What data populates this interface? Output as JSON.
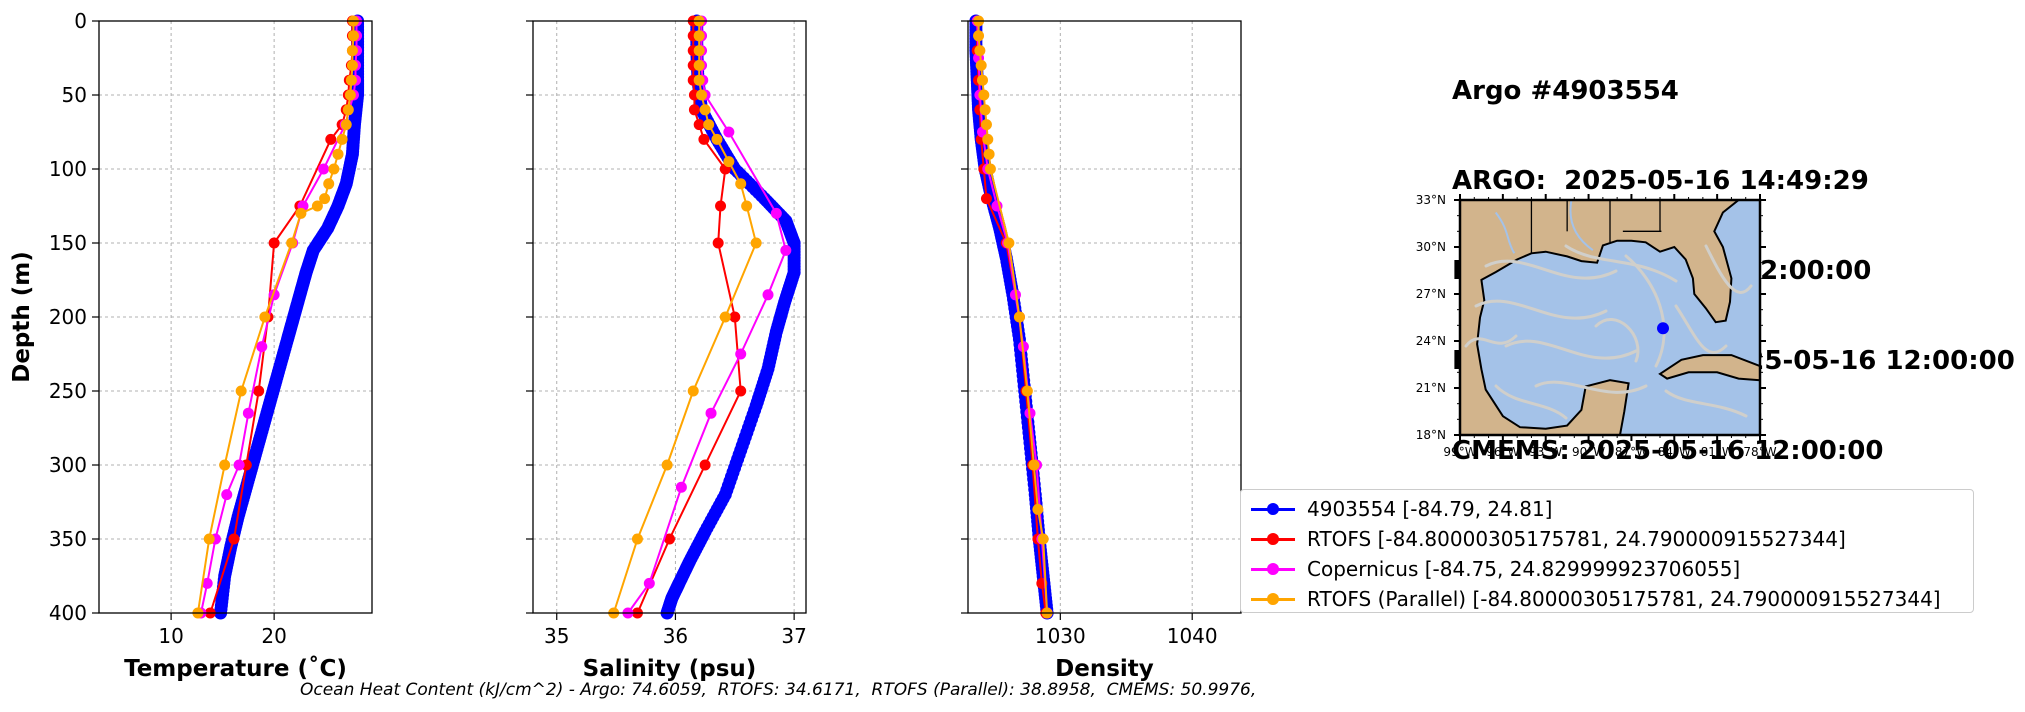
{
  "colors": {
    "argo": "#0000ff",
    "rtofs": "#ff0000",
    "copernicus": "#ff00ff",
    "rtofs_parallel": "#ffa500",
    "land": "#d2b48c",
    "ocean": "#a4c2e8",
    "current": "#d0cfcb"
  },
  "info": {
    "lines": [
      "Argo #4903554",
      "ARGO:  2025-05-16 14:49:29",
      "RTOFS: 2025-05-16 12:00:00",
      "RTOFS (Parallel): 2025-05-16 12:00:00",
      "CMEMS: 2025-05-16 12:00:00"
    ]
  },
  "footnote": "Ocean Heat Content (kJ/cm^2) - Argo: 74.6059,  RTOFS: 34.6171,  RTOFS (Parallel): 38.8958,  CMEMS: 50.9976,",
  "legend": [
    {
      "label": "4903554 [-84.79, 24.81]",
      "color": "#0000ff"
    },
    {
      "label": "RTOFS [-84.80000305175781, 24.790000915527344]",
      "color": "#ff0000"
    },
    {
      "label": "Copernicus [-84.75, 24.829999923706055]",
      "color": "#ff00ff"
    },
    {
      "label": "RTOFS (Parallel) [-84.80000305175781, 24.790000915527344]",
      "color": "#ffa500"
    }
  ],
  "map": {
    "lat_labels": [
      "33°N",
      "30°N",
      "27°N",
      "24°N",
      "21°N",
      "18°N"
    ],
    "lat_values": [
      33,
      30,
      27,
      24,
      21,
      18
    ],
    "lon_labels": [
      "99°W",
      "96°W",
      "93°W",
      "90°W",
      "87°W",
      "84°W",
      "81°W",
      "78°W"
    ],
    "lon_values": [
      -99,
      -96,
      -93,
      -90,
      -87,
      -84,
      -81,
      -78
    ],
    "lon_range": [
      -99,
      -78
    ],
    "lat_range": [
      18,
      33
    ],
    "float_position": [
      -84.79,
      24.81
    ]
  },
  "chart_data": [
    {
      "type": "line",
      "xlabel": "Temperature (˚C)",
      "ylabel": "Depth (m)",
      "xlim": [
        3,
        29.5
      ],
      "ylim": [
        400,
        0
      ],
      "xticks": [
        10,
        20
      ],
      "xtick_labels": [
        "10",
        "20"
      ],
      "yticks": [
        0,
        50,
        100,
        150,
        200,
        250,
        300,
        350,
        400
      ],
      "ytick_labels": [
        "0",
        "50",
        "100",
        "150",
        "200",
        "250",
        "300",
        "350",
        "400"
      ],
      "grid": true,
      "series": [
        {
          "name": "4903554 [-84.79, 24.81]",
          "color": "#0000ff",
          "dense": true,
          "x": [
            28.1,
            28.1,
            28.1,
            28.1,
            27.8,
            27.6,
            27.0,
            26.2,
            25.2,
            23.8,
            23.1,
            22.5,
            21.9,
            21.3,
            20.5,
            19.7,
            18.9,
            18.1,
            17.3,
            16.5,
            15.8,
            15.2,
            14.8
          ],
          "y": [
            0,
            20,
            40,
            50,
            70,
            90,
            110,
            125,
            140,
            155,
            170,
            185,
            200,
            215,
            235,
            255,
            275,
            295,
            315,
            335,
            355,
            375,
            400
          ]
        },
        {
          "name": "RTOFS [-84.80000305175781, 24.790000915527344]",
          "color": "#ff0000",
          "x": [
            27.6,
            27.6,
            27.6,
            27.5,
            27.3,
            27.2,
            27.0,
            26.6,
            25.5,
            22.5,
            20.0,
            19.4,
            18.5,
            17.3,
            16.1,
            13.8
          ],
          "y": [
            0,
            10,
            20,
            30,
            40,
            50,
            60,
            70,
            80,
            125,
            150,
            200,
            250,
            300,
            350,
            400
          ]
        },
        {
          "name": "Copernicus [-84.75, 24.829999923706055]",
          "color": "#ff00ff",
          "x": [
            28.0,
            28.0,
            28.0,
            27.9,
            27.9,
            27.7,
            26.9,
            24.8,
            22.8,
            21.8,
            20.0,
            18.8,
            17.5,
            16.6,
            15.4,
            14.3,
            13.5,
            12.9
          ],
          "y": [
            0,
            10,
            20,
            30,
            40,
            50,
            70,
            100,
            125,
            150,
            185,
            220,
            265,
            300,
            320,
            350,
            380,
            400
          ]
        },
        {
          "name": "RTOFS (Parallel) [-84.80000305175781, 24.790000915527344]",
          "color": "#ffa500",
          "x": [
            27.7,
            27.7,
            27.6,
            27.6,
            27.5,
            27.4,
            27.2,
            27.0,
            26.6,
            26.2,
            25.8,
            25.3,
            24.9,
            24.2,
            22.6,
            21.7,
            19.1,
            16.8,
            15.2,
            13.7,
            12.6
          ],
          "y": [
            0,
            10,
            20,
            30,
            40,
            50,
            60,
            70,
            80,
            90,
            100,
            110,
            120,
            125,
            130,
            150,
            200,
            250,
            300,
            350,
            400
          ]
        }
      ]
    },
    {
      "type": "line",
      "xlabel": "Salinity (psu)",
      "xlim": [
        34.8,
        37.1
      ],
      "ylim": [
        400,
        0
      ],
      "xticks": [
        35,
        36,
        37
      ],
      "xtick_labels": [
        "35",
        "36",
        "37"
      ],
      "yticks": [
        0,
        50,
        100,
        150,
        200,
        250,
        300,
        350,
        400
      ],
      "grid": true,
      "series": [
        {
          "name": "4903554 [-84.79, 24.81]",
          "color": "#0000ff",
          "dense": true,
          "x": [
            36.18,
            36.18,
            36.19,
            36.22,
            36.35,
            36.5,
            36.75,
            36.93,
            37.0,
            37.0,
            36.92,
            36.85,
            36.78,
            36.68,
            36.55,
            36.42,
            36.25,
            36.12,
            36.03,
            35.97,
            35.93
          ],
          "y": [
            0,
            20,
            40,
            60,
            80,
            100,
            120,
            135,
            150,
            170,
            190,
            210,
            235,
            260,
            290,
            320,
            345,
            365,
            380,
            390,
            400
          ]
        },
        {
          "name": "RTOFS [-84.80000305175781, 24.790000915527344]",
          "color": "#ff0000",
          "x": [
            36.15,
            36.15,
            36.15,
            36.15,
            36.15,
            36.16,
            36.16,
            36.2,
            36.24,
            36.42,
            36.38,
            36.36,
            36.5,
            36.55,
            36.25,
            35.95,
            35.68
          ],
          "y": [
            0,
            10,
            20,
            30,
            40,
            50,
            60,
            70,
            80,
            100,
            125,
            150,
            200,
            250,
            300,
            350,
            400
          ]
        },
        {
          "name": "Copernicus [-84.75, 24.829999923706055]",
          "color": "#ff00ff",
          "x": [
            36.22,
            36.22,
            36.22,
            36.22,
            36.23,
            36.25,
            36.45,
            36.85,
            36.93,
            36.78,
            36.55,
            36.3,
            36.05,
            35.78,
            35.6
          ],
          "y": [
            0,
            10,
            20,
            30,
            40,
            50,
            75,
            130,
            155,
            185,
            225,
            265,
            315,
            380,
            400
          ]
        },
        {
          "name": "RTOFS (Parallel) [-84.80000305175781, 24.790000915527344]",
          "color": "#ffa500",
          "x": [
            36.2,
            36.2,
            36.2,
            36.2,
            36.2,
            36.22,
            36.25,
            36.28,
            36.35,
            36.45,
            36.55,
            36.6,
            36.68,
            36.42,
            36.15,
            35.93,
            35.68,
            35.48
          ],
          "y": [
            0,
            10,
            20,
            30,
            40,
            50,
            60,
            70,
            80,
            95,
            110,
            125,
            150,
            200,
            250,
            300,
            350,
            400
          ]
        }
      ]
    },
    {
      "type": "line",
      "xlabel": "Density",
      "xlim": [
        1023.0,
        1043.7
      ],
      "ylim": [
        400,
        0
      ],
      "xticks": [
        1030,
        1040
      ],
      "xtick_labels": [
        "1030",
        "1040"
      ],
      "yticks": [
        0,
        50,
        100,
        150,
        200,
        250,
        300,
        350,
        400
      ],
      "grid": true,
      "series": [
        {
          "name": "4903554 [-84.79, 24.81]",
          "color": "#0000ff",
          "dense": true,
          "x": [
            1023.6,
            1023.6,
            1023.7,
            1023.8,
            1024.0,
            1024.3,
            1024.8,
            1025.4,
            1025.9,
            1026.4,
            1026.9,
            1027.3,
            1027.7,
            1028.1,
            1028.4,
            1028.7,
            1029.0
          ],
          "y": [
            0,
            20,
            40,
            60,
            80,
            100,
            120,
            140,
            160,
            185,
            215,
            250,
            285,
            320,
            350,
            375,
            400
          ]
        },
        {
          "name": "RTOFS [-84.80000305175781, 24.790000915527344]",
          "color": "#ff0000",
          "x": [
            1023.7,
            1023.7,
            1023.8,
            1023.9,
            1024.0,
            1024.2,
            1024.4,
            1025.9,
            1026.9,
            1027.4,
            1027.9,
            1028.3,
            1028.6,
            1028.9
          ],
          "y": [
            0,
            20,
            40,
            60,
            80,
            100,
            120,
            150,
            200,
            250,
            300,
            350,
            380,
            400
          ]
        },
        {
          "name": "Copernicus [-84.75, 24.829999923706055]",
          "color": "#ff00ff",
          "x": [
            1023.7,
            1023.8,
            1023.9,
            1024.1,
            1024.5,
            1025.2,
            1026.0,
            1026.6,
            1027.2,
            1027.7,
            1028.2,
            1028.6,
            1029.0
          ],
          "y": [
            0,
            25,
            50,
            75,
            100,
            125,
            150,
            185,
            220,
            265,
            300,
            350,
            400
          ]
        },
        {
          "name": "RTOFS (Parallel) [-84.80000305175781, 24.790000915527344]",
          "color": "#ffa500",
          "x": [
            1023.8,
            1023.8,
            1023.9,
            1024.0,
            1024.1,
            1024.2,
            1024.3,
            1024.4,
            1024.5,
            1024.6,
            1024.7,
            1026.1,
            1026.9,
            1027.5,
            1028.0,
            1028.3,
            1028.7,
            1029.0
          ],
          "y": [
            0,
            10,
            20,
            30,
            40,
            50,
            60,
            70,
            80,
            90,
            100,
            150,
            200,
            250,
            300,
            330,
            350,
            400
          ]
        }
      ]
    }
  ]
}
